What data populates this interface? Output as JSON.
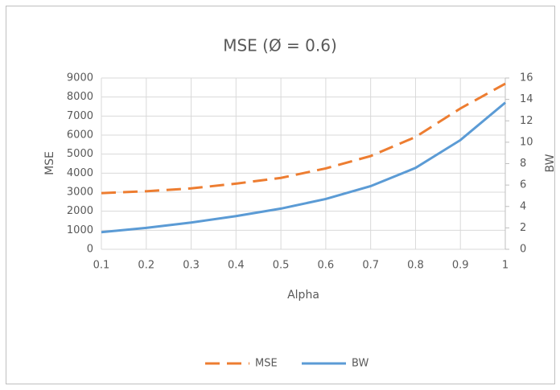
{
  "chart_data": {
    "type": "line",
    "title": "MSE (Ø = 0.6)",
    "x_label": "Alpha",
    "y_label": "MSE",
    "y2_label": "BW",
    "x": [
      0.1,
      0.2,
      0.3,
      0.4,
      0.5,
      0.6,
      0.7,
      0.8,
      0.9,
      1
    ],
    "series": [
      {
        "name": "MSE",
        "color": "#ED7D31",
        "line_style": "dashed",
        "values": [
          2950,
          3050,
          3200,
          3450,
          3750,
          4250,
          4900,
          5900,
          7400,
          8700
        ]
      },
      {
        "name": "BW",
        "color": "#5B9BD5",
        "line_style": "solid",
        "axis": "y2",
        "values": [
          1.6,
          2.0,
          2.5,
          3.1,
          3.8,
          4.7,
          5.9,
          7.6,
          10.2,
          13.7
        ]
      }
    ],
    "xlim": [
      0.1,
      1
    ],
    "xticks": [
      0.1,
      0.2,
      0.3,
      0.4,
      0.5,
      0.6,
      0.7,
      0.8,
      0.9,
      1
    ],
    "ylim": [
      0,
      9000
    ],
    "yticks": [
      0,
      1000,
      2000,
      3000,
      4000,
      5000,
      6000,
      7000,
      8000,
      9000
    ],
    "y2lim": [
      0,
      16
    ],
    "y2ticks": [
      0,
      2,
      4,
      6,
      8,
      10,
      12,
      14,
      16
    ],
    "grid": true,
    "legend": "bottom"
  }
}
